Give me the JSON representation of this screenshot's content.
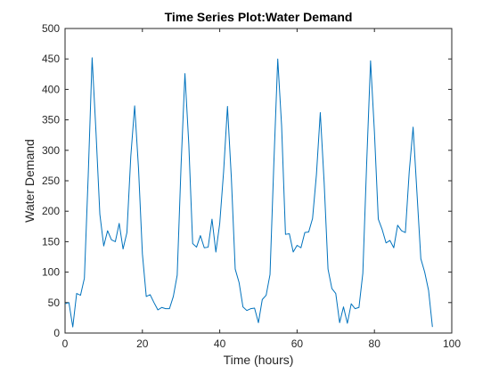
{
  "chart_data": {
    "type": "line",
    "title": "Time Series Plot:Water Demand",
    "xlabel": "Time (hours)",
    "ylabel": "Water Demand",
    "xlim": [
      0,
      100
    ],
    "ylim": [
      0,
      500
    ],
    "xticks": [
      0,
      20,
      40,
      60,
      80,
      100
    ],
    "yticks": [
      0,
      50,
      100,
      150,
      200,
      250,
      300,
      350,
      400,
      450,
      500
    ],
    "grid": false,
    "series": [
      {
        "color": "#0072BD",
        "x": [
          0,
          1,
          2,
          3,
          4,
          5,
          6,
          7,
          8,
          9,
          10,
          11,
          12,
          13,
          14,
          15,
          16,
          17,
          18,
          19,
          20,
          21,
          22,
          23,
          24,
          25,
          26,
          27,
          28,
          29,
          30,
          31,
          32,
          33,
          34,
          35,
          36,
          37,
          38,
          39,
          40,
          41,
          42,
          43,
          44,
          45,
          46,
          47,
          48,
          49,
          50,
          51,
          52,
          53,
          54,
          55,
          56,
          57,
          58,
          59,
          60,
          61,
          62,
          63,
          64,
          65,
          66,
          67,
          68,
          69,
          70,
          71,
          72,
          73,
          74,
          75,
          76,
          77,
          78,
          79,
          80,
          81,
          82,
          83,
          84,
          85,
          86,
          87,
          88,
          89,
          90,
          91,
          92,
          93,
          94,
          95
        ],
        "y": [
          48,
          50,
          10,
          65,
          62,
          90,
          260,
          452,
          330,
          195,
          143,
          168,
          153,
          150,
          180,
          138,
          165,
          290,
          373,
          270,
          130,
          60,
          63,
          50,
          38,
          42,
          40,
          40,
          60,
          95,
          275,
          426,
          310,
          147,
          141,
          160,
          140,
          141,
          187,
          133,
          180,
          265,
          372,
          255,
          105,
          83,
          43,
          37,
          40,
          41,
          17,
          55,
          62,
          96,
          280,
          450,
          340,
          162,
          163,
          133,
          144,
          140,
          165,
          166,
          188,
          260,
          362,
          247,
          105,
          73,
          65,
          17,
          43,
          16,
          48,
          40,
          42,
          98,
          280,
          447,
          330,
          187,
          170,
          148,
          152,
          140,
          177,
          168,
          165,
          265,
          338,
          230,
          122,
          100,
          70,
          10
        ]
      }
    ]
  }
}
